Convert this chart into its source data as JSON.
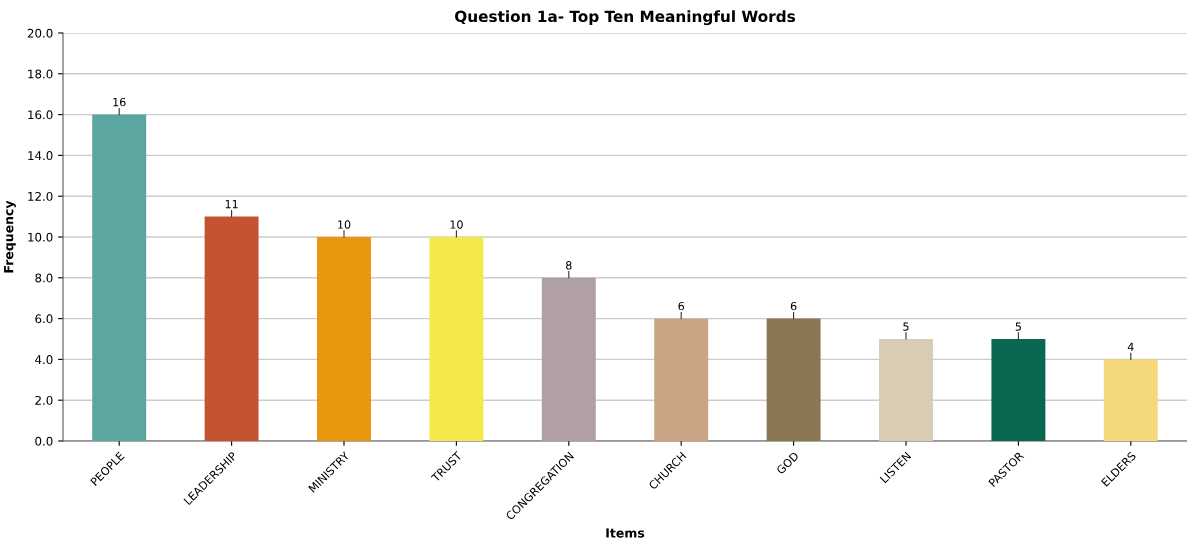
{
  "chart_data": {
    "type": "bar",
    "title": "Question 1a- Top Ten Meaningful Words",
    "xlabel": "Items",
    "ylabel": "Frequency",
    "categories": [
      "PEOPLE",
      "LEADERSHIP",
      "MINISTRY",
      "TRUST",
      "CONGREGATION",
      "CHURCH",
      "GOD",
      "LISTEN",
      "PASTOR",
      "ELDERS"
    ],
    "values": [
      16,
      11,
      10,
      10,
      8,
      6,
      6,
      5,
      5,
      4
    ],
    "colors": [
      "#5ca6a0",
      "#c45431",
      "#e8960b",
      "#f5e84b",
      "#b0a0a4",
      "#c9a584",
      "#8b7753",
      "#d8cdb4",
      "#0b6652",
      "#f6d87c"
    ],
    "ylim": [
      0,
      20
    ],
    "yticks": [
      {
        "value": 0,
        "label": "0.0"
      },
      {
        "value": 2,
        "label": "2.0"
      },
      {
        "value": 4,
        "label": "4.0"
      },
      {
        "value": 6,
        "label": "6.0"
      },
      {
        "value": 8,
        "label": "8.0"
      },
      {
        "value": 10,
        "label": "10.0"
      },
      {
        "value": 12,
        "label": "12.0"
      },
      {
        "value": 14,
        "label": "14.0"
      },
      {
        "value": 16,
        "label": "16.0"
      },
      {
        "value": 18,
        "label": "18.0"
      },
      {
        "value": 20,
        "label": "20.0"
      }
    ],
    "grid": "y",
    "data_labels": true
  }
}
